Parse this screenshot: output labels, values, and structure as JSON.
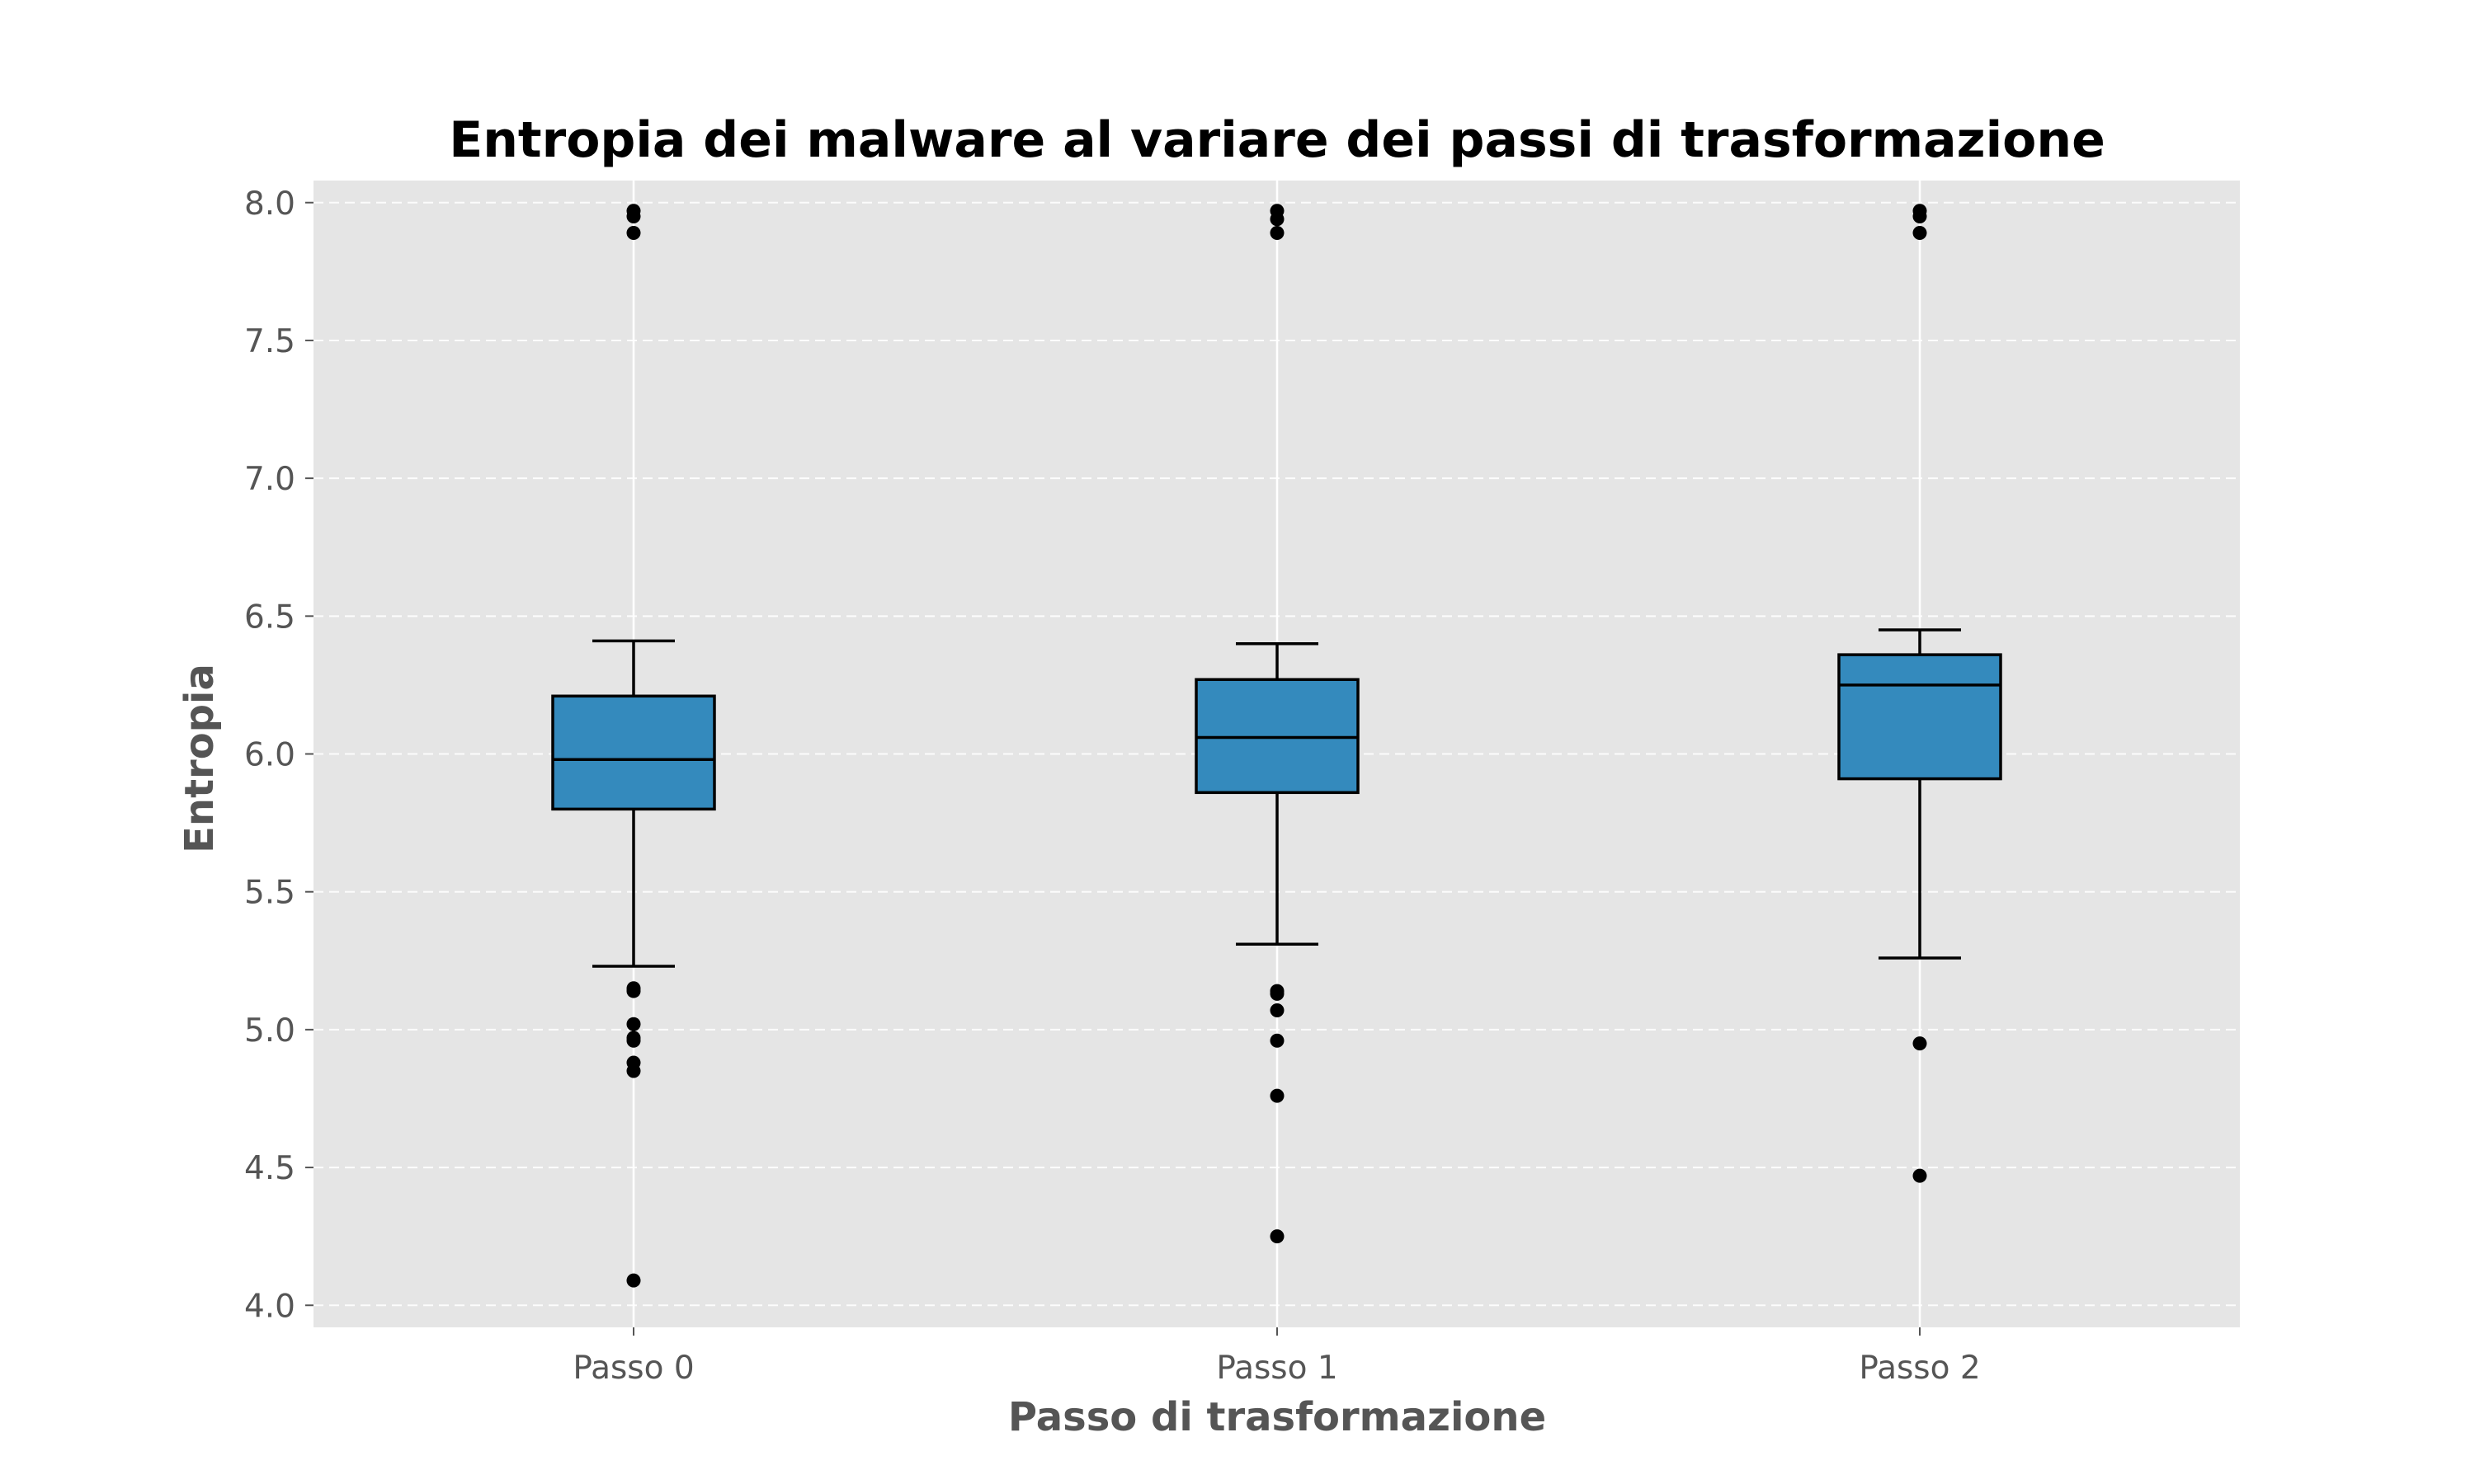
{
  "chart_data": {
    "type": "box",
    "title": "Entropia dei malware al variare dei passi di trasformazione",
    "xlabel": "Passo di trasformazione",
    "ylabel": "Entropia",
    "ylim": [
      3.92,
      8.08
    ],
    "yticks": [
      "4.0",
      "4.5",
      "5.0",
      "5.5",
      "6.0",
      "6.5",
      "7.0",
      "7.5",
      "8.0"
    ],
    "categories": [
      "Passo 0",
      "Passo 1",
      "Passo 2"
    ],
    "grid": true,
    "box_color": "#348ABD",
    "background_color": "#E5E5E5",
    "boxes": [
      {
        "label": "Passo 0",
        "whisker_low": 5.23,
        "q1": 5.8,
        "median": 5.98,
        "q3": 6.21,
        "whisker_high": 6.41,
        "outliers": [
          7.89,
          7.95,
          7.97,
          5.14,
          5.15,
          5.02,
          4.96,
          4.97,
          4.88,
          4.85,
          4.09
        ]
      },
      {
        "label": "Passo 1",
        "whisker_low": 5.31,
        "q1": 5.86,
        "median": 6.06,
        "q3": 6.27,
        "whisker_high": 6.4,
        "outliers": [
          7.89,
          7.94,
          7.97,
          5.13,
          5.14,
          5.07,
          4.96,
          4.76,
          4.25
        ]
      },
      {
        "label": "Passo 2",
        "whisker_low": 5.26,
        "q1": 5.91,
        "median": 6.25,
        "q3": 6.36,
        "whisker_high": 6.45,
        "outliers": [
          7.89,
          7.95,
          7.97,
          4.95,
          4.47
        ]
      }
    ]
  }
}
